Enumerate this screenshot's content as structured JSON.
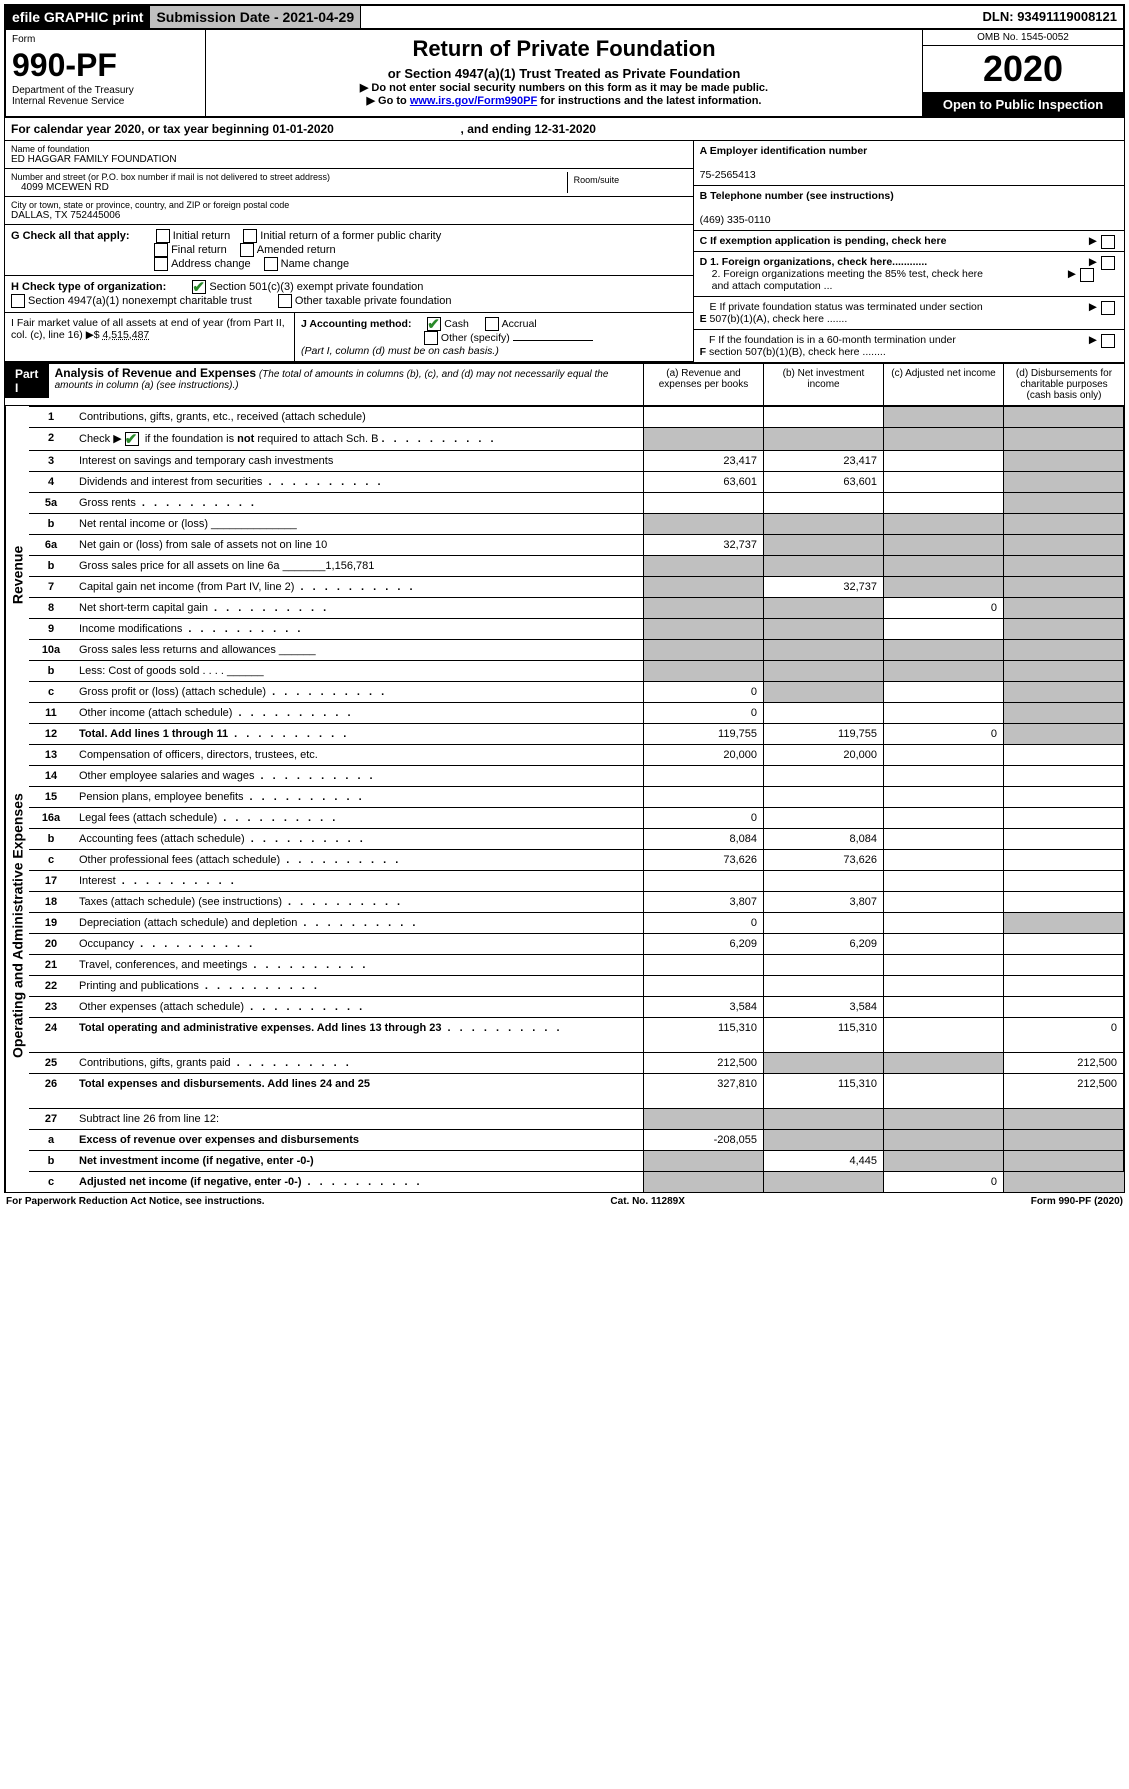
{
  "topbar": {
    "efile": "efile GRAPHIC print",
    "submission": "Submission Date - 2021-04-29",
    "dln": "DLN: 93491119008121"
  },
  "header": {
    "form_label": "Form",
    "form_number": "990-PF",
    "dept": "Department of the Treasury",
    "irs": "Internal Revenue Service",
    "title": "Return of Private Foundation",
    "subtitle": "or Section 4947(a)(1) Trust Treated as Private Foundation",
    "warn1": "▶ Do not enter social security numbers on this form as it may be made public.",
    "warn2_pre": "▶ Go to ",
    "warn2_link": "www.irs.gov/Form990PF",
    "warn2_post": " for instructions and the latest information.",
    "omb": "OMB No. 1545-0052",
    "year": "2020",
    "inspect": "Open to Public Inspection"
  },
  "calendar": {
    "text_pre": "For calendar year 2020, or tax year beginning ",
    "begin": "01-01-2020",
    "mid": " , and ending ",
    "end": "12-31-2020"
  },
  "entity": {
    "name_label": "Name of foundation",
    "name": "ED HAGGAR FAMILY FOUNDATION",
    "addr_label": "Number and street (or P.O. box number if mail is not delivered to street address)",
    "addr": "4099 MCEWEN RD",
    "room_label": "Room/suite",
    "city_label": "City or town, state or province, country, and ZIP or foreign postal code",
    "city": "DALLAS, TX  752445006"
  },
  "right_info": {
    "a_label": "A Employer identification number",
    "a_val": "75-2565413",
    "b_label": "B Telephone number (see instructions)",
    "b_val": "(469) 335-0110",
    "c_label": "C If exemption application is pending, check here",
    "d1": "D 1. Foreign organizations, check here............",
    "d2": "2. Foreign organizations meeting the 85% test, check here and attach computation ...",
    "e": "E  If private foundation status was terminated under section 507(b)(1)(A), check here .......",
    "f": "F  If the foundation is in a 60-month termination under section 507(b)(1)(B), check here ........"
  },
  "checks": {
    "g_label": "G Check all that apply:",
    "g_items": [
      "Initial return",
      "Initial return of a former public charity",
      "Final return",
      "Amended return",
      "Address change",
      "Name change"
    ],
    "h_label": "H Check type of organization:",
    "h1": "Section 501(c)(3) exempt private foundation",
    "h2": "Section 4947(a)(1) nonexempt charitable trust",
    "h3": "Other taxable private foundation",
    "i_label": "I Fair market value of all assets at end of year (from Part II, col. (c), line 16) ▶$",
    "i_val": "4,515,487",
    "j_label": "J Accounting method:",
    "j1": "Cash",
    "j2": "Accrual",
    "j3": "Other (specify)",
    "j_note": "(Part I, column (d) must be on cash basis.)"
  },
  "part1": {
    "label": "Part I",
    "title": "Analysis of Revenue and Expenses",
    "note": "(The total of amounts in columns (b), (c), and (d) may not necessarily equal the amounts in column (a) (see instructions).)",
    "col_a": "(a)   Revenue and expenses per books",
    "col_b": "(b)  Net investment income",
    "col_c": "(c)  Adjusted net income",
    "col_d": "(d)  Disbursements for charitable purposes (cash basis only)"
  },
  "sections": {
    "revenue": "Revenue",
    "opex": "Operating and Administrative Expenses"
  },
  "rows": [
    {
      "n": "1",
      "d": "Contributions, gifts, grants, etc., received (attach schedule)",
      "a": "",
      "b": "",
      "c": "s",
      "dcol": "s"
    },
    {
      "n": "2",
      "d": "Check ▶ ☑ if the foundation is not required to attach Sch. B",
      "a": "s",
      "b": "s",
      "c": "s",
      "dcol": "s",
      "dotrow": true,
      "nobold": true
    },
    {
      "n": "3",
      "d": "Interest on savings and temporary cash investments",
      "a": "23,417",
      "b": "23,417",
      "c": "",
      "dcol": "s"
    },
    {
      "n": "4",
      "d": "Dividends and interest from securities",
      "a": "63,601",
      "b": "63,601",
      "c": "",
      "dcol": "s",
      "dots": true
    },
    {
      "n": "5a",
      "d": "Gross rents",
      "a": "",
      "b": "",
      "c": "",
      "dcol": "s",
      "dots": true
    },
    {
      "n": "b",
      "d": "Net rental income or (loss)          ______________",
      "a": "s",
      "b": "s",
      "c": "s",
      "dcol": "s"
    },
    {
      "n": "6a",
      "d": "Net gain or (loss) from sale of assets not on line 10",
      "a": "32,737",
      "b": "s",
      "c": "s",
      "dcol": "s"
    },
    {
      "n": "b",
      "d": "Gross sales price for all assets on line 6a _______1,156,781",
      "a": "s",
      "b": "s",
      "c": "s",
      "dcol": "s"
    },
    {
      "n": "7",
      "d": "Capital gain net income (from Part IV, line 2)",
      "a": "s",
      "b": "32,737",
      "c": "s",
      "dcol": "s",
      "dots": true
    },
    {
      "n": "8",
      "d": "Net short-term capital gain",
      "a": "s",
      "b": "s",
      "c": "0",
      "dcol": "s",
      "dots": true
    },
    {
      "n": "9",
      "d": "Income modifications",
      "a": "s",
      "b": "s",
      "c": "",
      "dcol": "s",
      "dots": true
    },
    {
      "n": "10a",
      "d": "Gross sales less returns and allowances   ______",
      "a": "s",
      "b": "s",
      "c": "s",
      "dcol": "s"
    },
    {
      "n": "b",
      "d": "Less: Cost of goods sold       .  .  .  .   ______",
      "a": "s",
      "b": "s",
      "c": "s",
      "dcol": "s"
    },
    {
      "n": "c",
      "d": "Gross profit or (loss) (attach schedule)",
      "a": "0",
      "b": "s",
      "c": "",
      "dcol": "s",
      "dots": true
    },
    {
      "n": "11",
      "d": "Other income (attach schedule)",
      "a": "0",
      "b": "",
      "c": "",
      "dcol": "s",
      "dots": true
    },
    {
      "n": "12",
      "d": "Total. Add lines 1 through 11",
      "a": "119,755",
      "b": "119,755",
      "c": "0",
      "dcol": "s",
      "bold": true,
      "dots": true
    }
  ],
  "rows2": [
    {
      "n": "13",
      "d": "Compensation of officers, directors, trustees, etc.",
      "a": "20,000",
      "b": "20,000",
      "c": "",
      "dcol": ""
    },
    {
      "n": "14",
      "d": "Other employee salaries and wages",
      "a": "",
      "b": "",
      "c": "",
      "dcol": "",
      "dots": true
    },
    {
      "n": "15",
      "d": "Pension plans, employee benefits",
      "a": "",
      "b": "",
      "c": "",
      "dcol": "",
      "dots": true
    },
    {
      "n": "16a",
      "d": "Legal fees (attach schedule)",
      "a": "0",
      "b": "",
      "c": "",
      "dcol": "",
      "dots": true
    },
    {
      "n": "b",
      "d": "Accounting fees (attach schedule)",
      "a": "8,084",
      "b": "8,084",
      "c": "",
      "dcol": "",
      "dots": true
    },
    {
      "n": "c",
      "d": "Other professional fees (attach schedule)",
      "a": "73,626",
      "b": "73,626",
      "c": "",
      "dcol": "",
      "dots": true
    },
    {
      "n": "17",
      "d": "Interest",
      "a": "",
      "b": "",
      "c": "",
      "dcol": "",
      "dots": true
    },
    {
      "n": "18",
      "d": "Taxes (attach schedule) (see instructions)",
      "a": "3,807",
      "b": "3,807",
      "c": "",
      "dcol": "",
      "dots": true
    },
    {
      "n": "19",
      "d": "Depreciation (attach schedule) and depletion",
      "a": "0",
      "b": "",
      "c": "",
      "dcol": "s",
      "dots": true
    },
    {
      "n": "20",
      "d": "Occupancy",
      "a": "6,209",
      "b": "6,209",
      "c": "",
      "dcol": "",
      "dots": true
    },
    {
      "n": "21",
      "d": "Travel, conferences, and meetings",
      "a": "",
      "b": "",
      "c": "",
      "dcol": "",
      "dots": true
    },
    {
      "n": "22",
      "d": "Printing and publications",
      "a": "",
      "b": "",
      "c": "",
      "dcol": "",
      "dots": true
    },
    {
      "n": "23",
      "d": "Other expenses (attach schedule)",
      "a": "3,584",
      "b": "3,584",
      "c": "",
      "dcol": "",
      "dots": true
    },
    {
      "n": "24",
      "d": "Total operating and administrative expenses. Add lines 13 through 23",
      "a": "115,310",
      "b": "115,310",
      "c": "",
      "dcol": "0",
      "bold": true,
      "dots": true,
      "tall": true
    },
    {
      "n": "25",
      "d": "Contributions, gifts, grants paid",
      "a": "212,500",
      "b": "s",
      "c": "s",
      "dcol": "212,500",
      "dots": true
    },
    {
      "n": "26",
      "d": "Total expenses and disbursements. Add lines 24 and 25",
      "a": "327,810",
      "b": "115,310",
      "c": "",
      "dcol": "212,500",
      "bold": true,
      "tall": true
    }
  ],
  "rows3": [
    {
      "n": "27",
      "d": "Subtract line 26 from line 12:",
      "a": "s",
      "b": "s",
      "c": "s",
      "dcol": "s"
    },
    {
      "n": "a",
      "d": "Excess of revenue over expenses and disbursements",
      "a": "-208,055",
      "b": "s",
      "c": "s",
      "dcol": "s",
      "bold": true
    },
    {
      "n": "b",
      "d": "Net investment income (if negative, enter -0-)",
      "a": "s",
      "b": "4,445",
      "c": "s",
      "dcol": "s",
      "bold": true
    },
    {
      "n": "c",
      "d": "Adjusted net income (if negative, enter -0-)",
      "a": "s",
      "b": "s",
      "c": "0",
      "dcol": "s",
      "bold": true,
      "dots": true
    }
  ],
  "footer": {
    "left": "For Paperwork Reduction Act Notice, see instructions.",
    "mid": "Cat. No. 11289X",
    "right": "Form 990-PF (2020)"
  }
}
